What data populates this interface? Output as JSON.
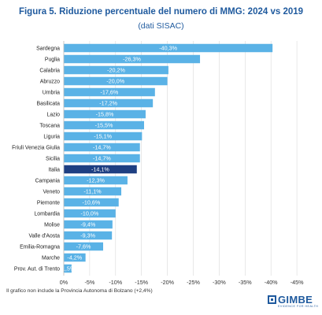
{
  "colors": {
    "bar": "#5ab2e6",
    "highlight": "#1e3f82",
    "title": "#1f5a9e"
  },
  "footnote": "Il grafico non include la Provincia Autonoma di Bolzano (+2,4%)",
  "logo": {
    "name": "GIMBE",
    "tagline": "EVIDENCE FOR HEALTH"
  },
  "chart_data": {
    "type": "bar",
    "orientation": "horizontal",
    "title": "Figura 5. Riduzione percentuale del numero di MMG: 2024 vs 2019",
    "subtitle": "(dati SISAC)",
    "categories": [
      "Sardegna",
      "Puglia",
      "Calabria",
      "Abruzzo",
      "Umbria",
      "Basilicata",
      "Lazio",
      "Toscana",
      "Liguria",
      "Friuli Venezia Giulia",
      "Sicilia",
      "Italia",
      "Campania",
      "Veneto",
      "Piemonte",
      "Lombardia",
      "Molise",
      "Valle d'Aosta",
      "Emilia-Romagna",
      "Marche",
      "Prov. Aut. di Trento"
    ],
    "values": [
      -40.3,
      -26.3,
      -20.2,
      -20.0,
      -17.6,
      -17.2,
      -15.8,
      -15.5,
      -15.1,
      -14.7,
      -14.7,
      -14.1,
      -12.3,
      -11.1,
      -10.6,
      -10.0,
      -9.4,
      -9.3,
      -7.6,
      -4.2,
      -1.5
    ],
    "value_labels": [
      "-40,3%",
      "-26,3%",
      "-20,2%",
      "-20,0%",
      "-17,6%",
      "-17,2%",
      "-15,8%",
      "-15,5%",
      "-15,1%",
      "-14,7%",
      "-14,7%",
      "-14,1%",
      "-12,3%",
      "-11,1%",
      "-10,6%",
      "-10,0%",
      "-9,4%",
      "-9,3%",
      "-7,6%",
      "-4,2%",
      "-1,5%"
    ],
    "highlight": "Italia",
    "xlim": [
      0,
      -45
    ],
    "xticks": [
      0,
      -5,
      -10,
      -15,
      -20,
      -25,
      -30,
      -35,
      -40,
      -45
    ],
    "xtick_labels": [
      "0%",
      "-5%",
      "-10%",
      "-15%",
      "-20%",
      "-25%",
      "-30%",
      "-35%",
      "-40%",
      "-45%"
    ],
    "grid": true,
    "legend": "none"
  }
}
